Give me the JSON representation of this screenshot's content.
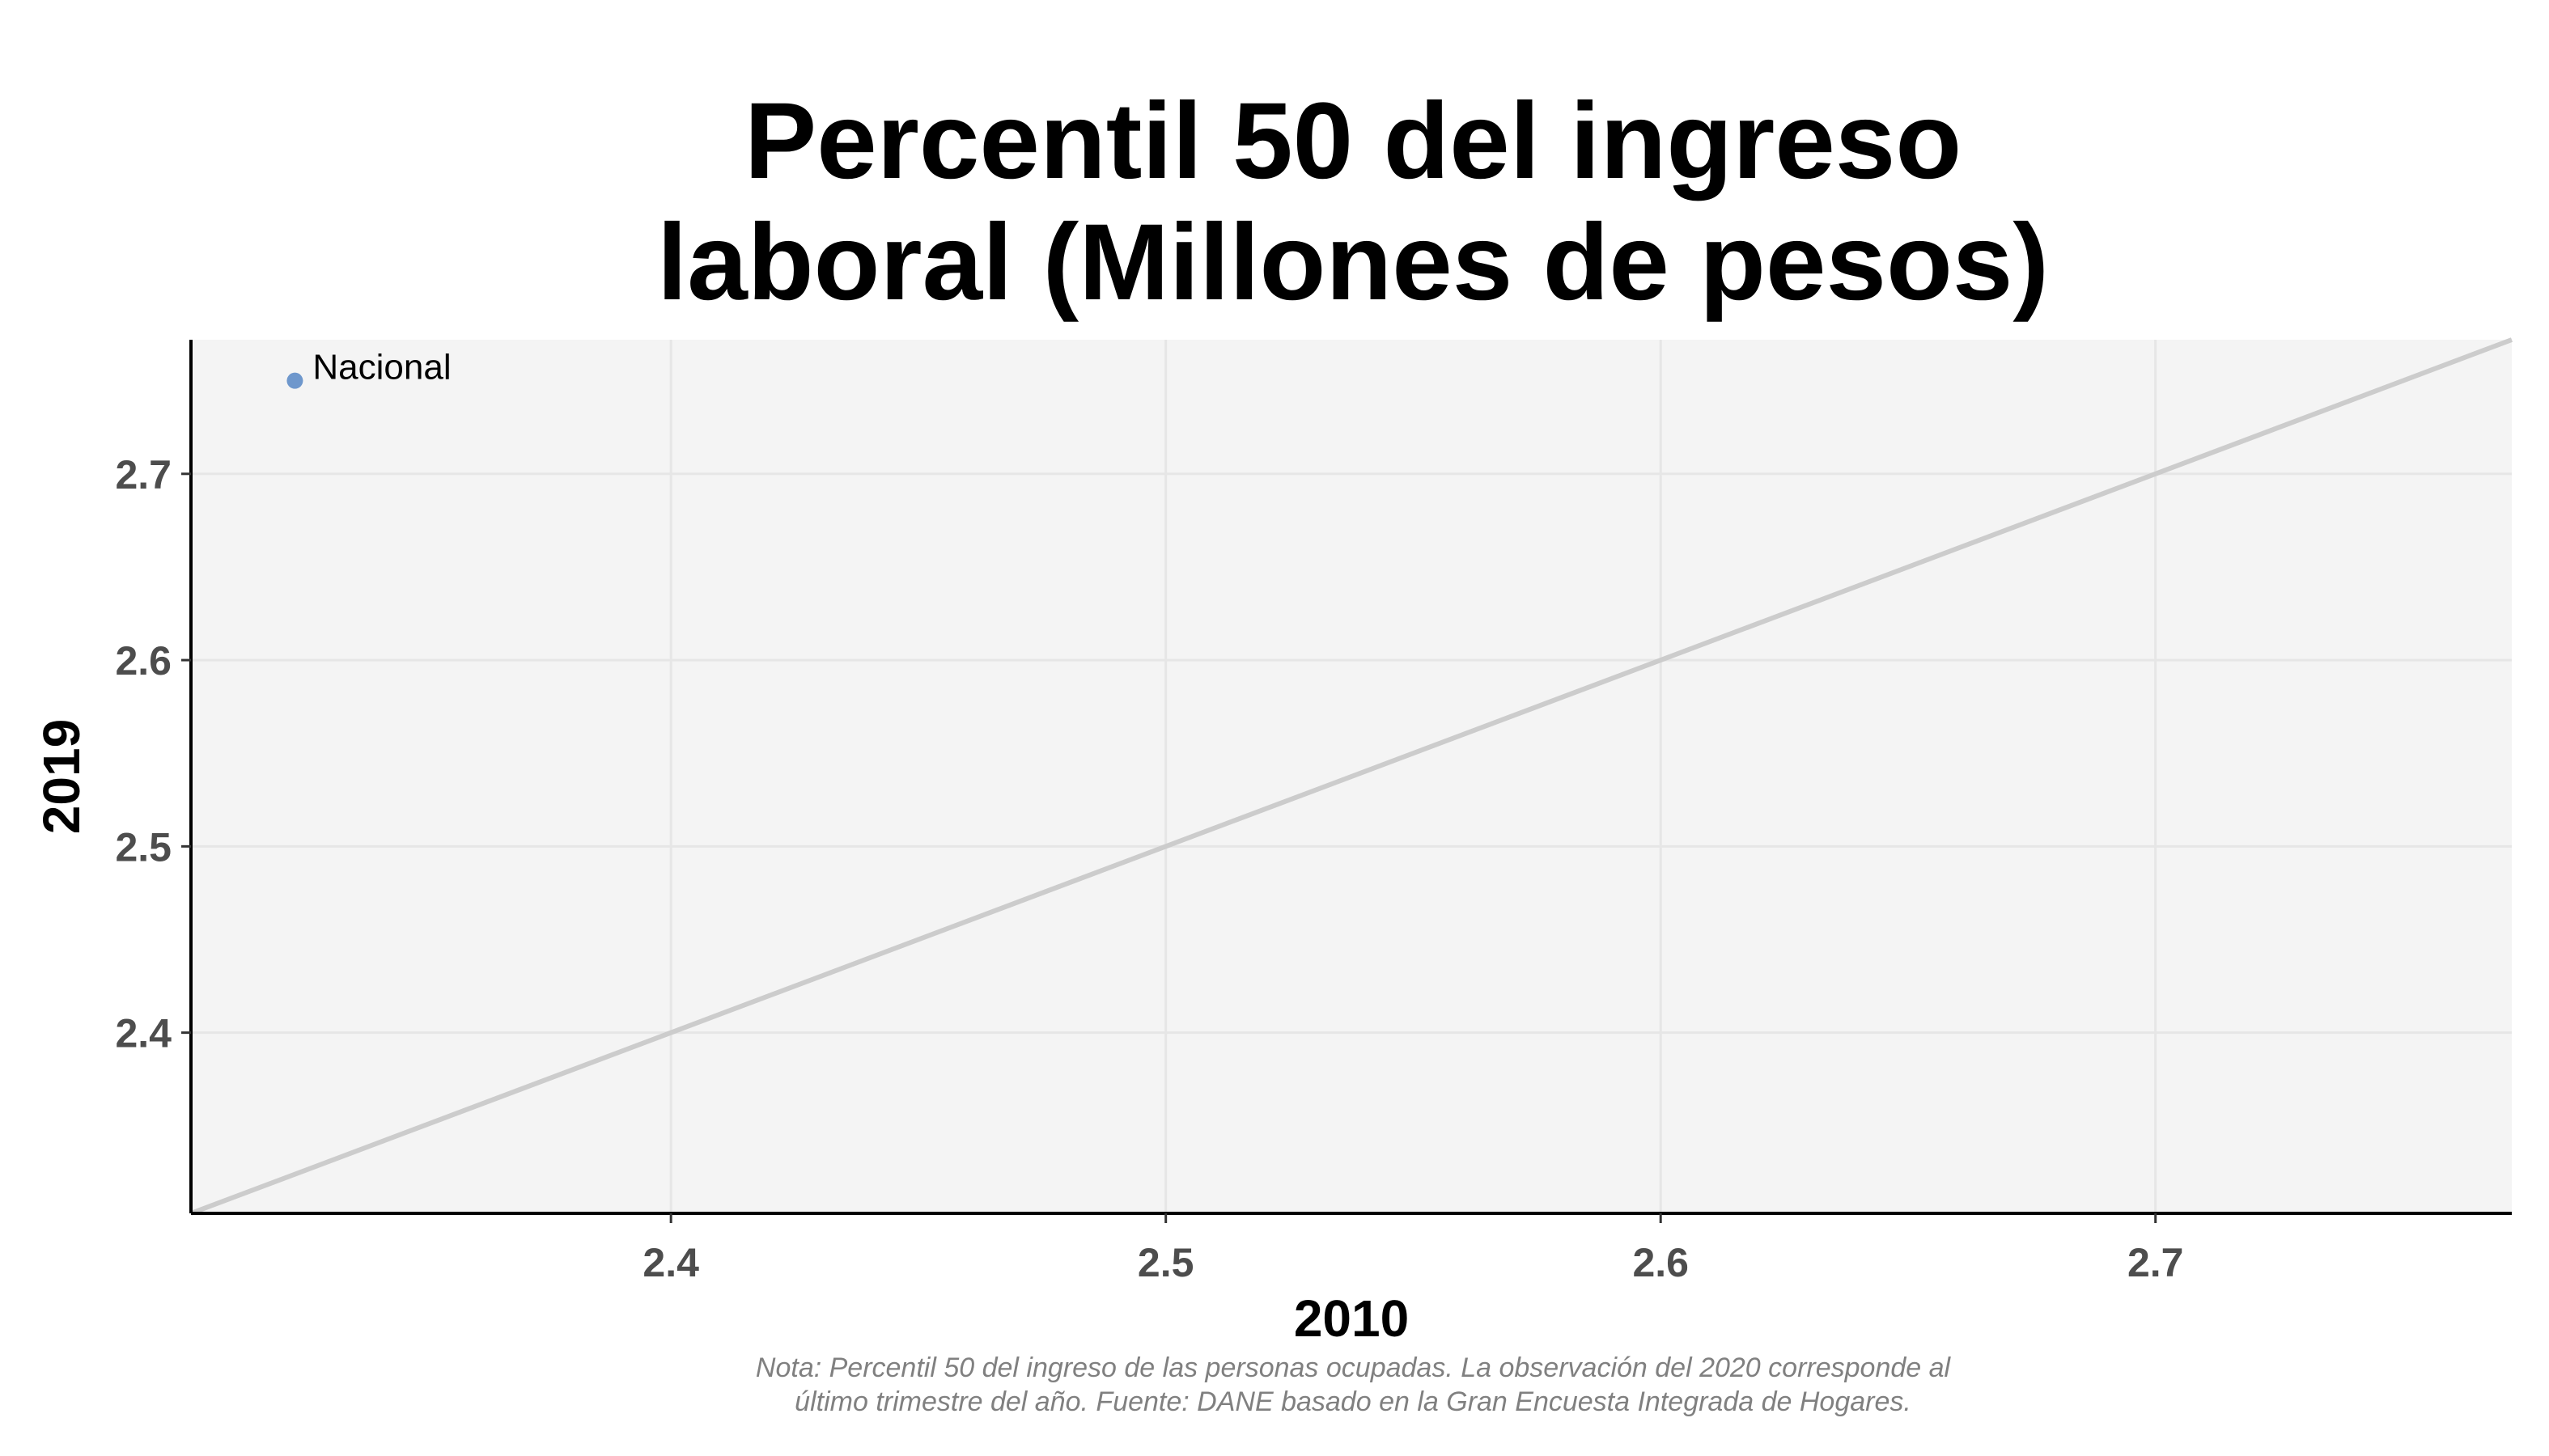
{
  "chart_data": {
    "type": "scatter",
    "title": [
      "Percentil 50 del ingreso",
      "laboral (Millones de pesos)"
    ],
    "xlabel": "2010",
    "ylabel": "2019",
    "xlim": [
      2.303,
      2.772
    ],
    "ylim": [
      2.303,
      2.772
    ],
    "x_ticks": [
      2.4,
      2.5,
      2.6,
      2.7
    ],
    "y_ticks": [
      2.4,
      2.5,
      2.6,
      2.7
    ],
    "x_tick_labels": [
      "2.4",
      "2.5",
      "2.6",
      "2.7"
    ],
    "y_tick_labels": [
      "2.4",
      "2.5",
      "2.6",
      "2.7"
    ],
    "points": [
      {
        "label": "Nacional",
        "x": 2.324,
        "y": 2.75
      }
    ],
    "reference_line": "y = x",
    "grid": true,
    "colors": {
      "point": "#6e97cc",
      "reference_line": "#cccccc",
      "panel": "#f4f4f4",
      "grid": "#e6e6e6"
    },
    "caption": [
      "Nota: Percentil 50 del ingreso de las personas ocupadas. La observación del 2020 corresponde al",
      "último trimestre del año. Fuente: DANE basado en la Gran Encuesta Integrada de Hogares."
    ]
  }
}
